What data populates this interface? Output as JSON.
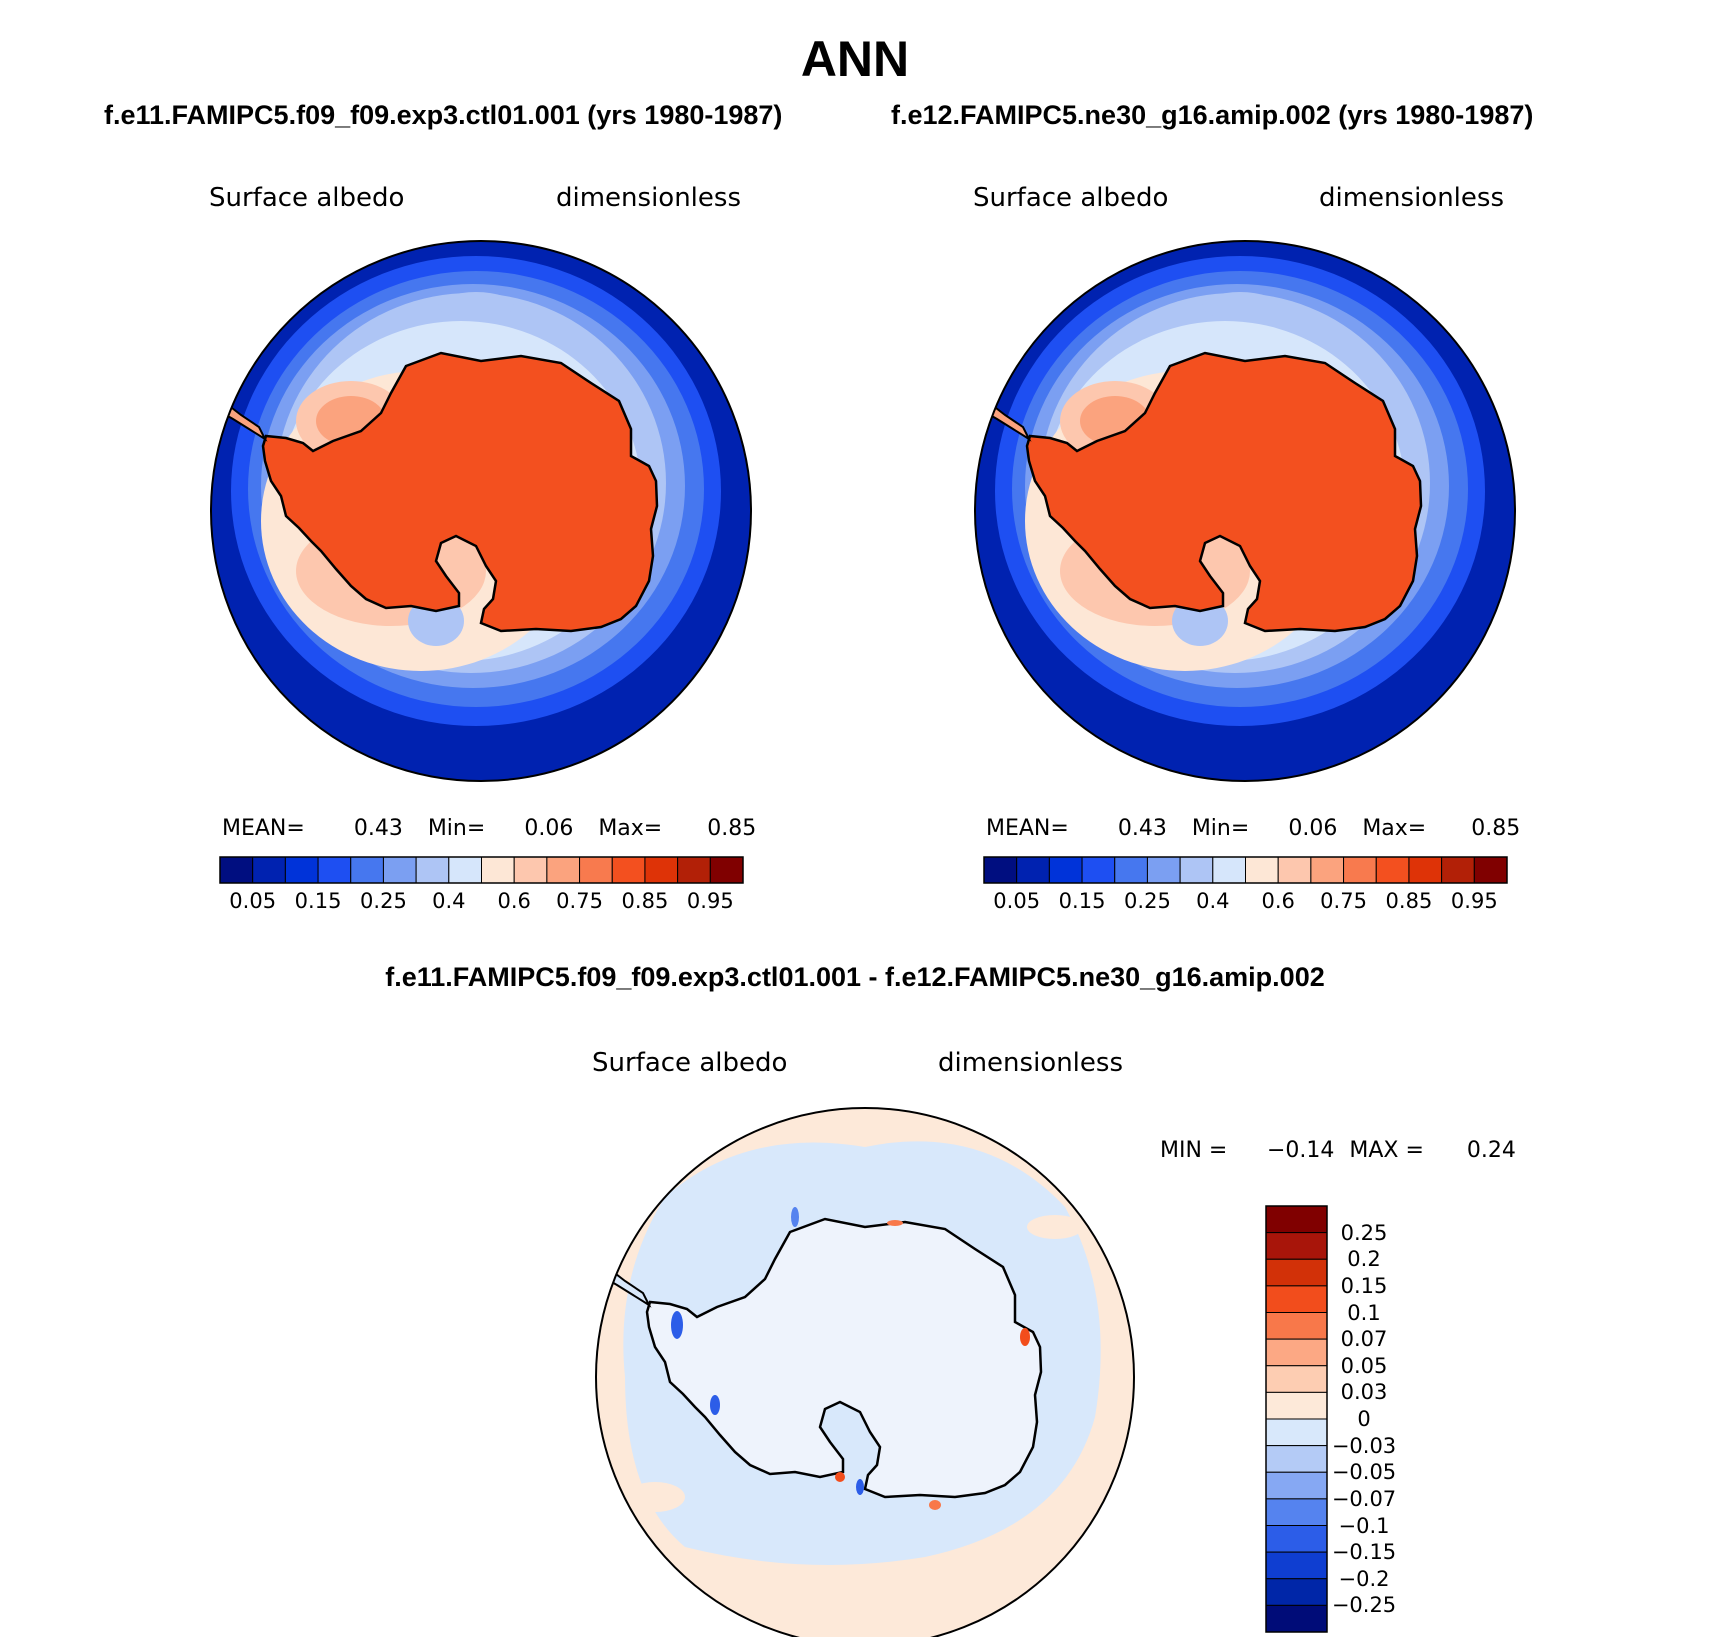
{
  "title": "ANN",
  "panels": [
    {
      "case": "f.e11.FAMIPC5.f09_f09.exp3.ctl01.001 (yrs 1980-1987)",
      "variable": "Surface albedo",
      "units": "dimensionless",
      "stats": {
        "mean_label": "MEAN=",
        "mean": "0.43",
        "min_label": "Min=",
        "min": "0.06",
        "max_label": "Max=",
        "max": "0.85"
      }
    },
    {
      "case": "f.e12.FAMIPC5.ne30_g16.amip.002 (yrs 1980-1987)",
      "variable": "Surface albedo",
      "units": "dimensionless",
      "stats": {
        "mean_label": "MEAN=",
        "mean": "0.43",
        "min_label": "Min=",
        "min": "0.06",
        "max_label": "Max=",
        "max": "0.85"
      }
    }
  ],
  "colorbar": {
    "colors": [
      "#000e80",
      "#0022b0",
      "#0033d9",
      "#1e4ff2",
      "#4677ef",
      "#7b9ff2",
      "#aec5f5",
      "#d6e6fb",
      "#fde7d6",
      "#fdc7ae",
      "#fba37e",
      "#f87a4e",
      "#f3501f",
      "#de3307",
      "#b22007",
      "#800000"
    ],
    "tick_labels": [
      "0.05",
      "0.15",
      "0.25",
      "0.4",
      "0.6",
      "0.75",
      "0.85",
      "0.95"
    ],
    "tick_boundaries": [
      1,
      3,
      5,
      7,
      9,
      11,
      13,
      15
    ]
  },
  "difference": {
    "title": "f.e11.FAMIPC5.f09_f09.exp3.ctl01.001 - f.e12.FAMIPC5.ne30_g16.amip.002",
    "variable": "Surface albedo",
    "units": "dimensionless",
    "stats": {
      "min_label": "MIN =",
      "min": "−0.14",
      "max_label": "MAX =",
      "max": "0.24"
    },
    "colorbar": {
      "colors_top_to_bottom": [
        "#800000",
        "#a8150a",
        "#d23108",
        "#f24d1c",
        "#f8784a",
        "#fca884",
        "#fdcdb2",
        "#fde9d9",
        "#d8e8fb",
        "#b4cbf6",
        "#86a8f3",
        "#5583ef",
        "#2c5de8",
        "#0f3ed1",
        "#0026a8",
        "#000c78"
      ],
      "tick_labels": [
        "0.25",
        "0.2",
        "0.15",
        "0.1",
        "0.07",
        "0.05",
        "0.03",
        "0",
        "−0.03",
        "−0.05",
        "−0.07",
        "−0.1",
        "−0.15",
        "−0.2",
        "−0.25"
      ]
    }
  },
  "colors": {
    "ocean_low": "#0022b0",
    "antarctica": "#f3501f",
    "diff_positive_bg": "#fde9d9",
    "diff_negative_bg": "#d8e8fb"
  }
}
